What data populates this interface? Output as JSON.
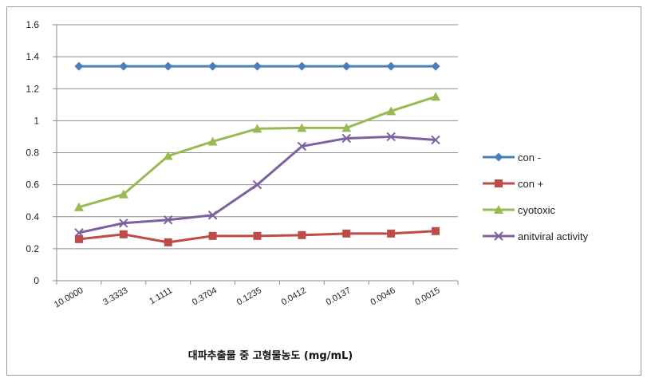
{
  "chart_data": {
    "type": "line",
    "title": "",
    "xlabel": "대파추출물 중 고형물농도 (mg/mL)",
    "ylabel": "",
    "ylim": [
      0,
      1.6
    ],
    "yticks": [
      "0",
      "0.2",
      "0.4",
      "0.6",
      "0.8",
      "1",
      "1.2",
      "1.4",
      "1.6"
    ],
    "categories": [
      "10.0000",
      "3.3333",
      "1.1111",
      "0.3704",
      "0.1235",
      "0.0412",
      "0.0137",
      "0.0046",
      "0.0015"
    ],
    "grid": "horizontal",
    "legend_position": "right",
    "series": [
      {
        "name": "con -",
        "color": "#4a7ebb",
        "marker": "diamond",
        "values": [
          1.34,
          1.34,
          1.34,
          1.34,
          1.34,
          1.34,
          1.34,
          1.34,
          1.34
        ]
      },
      {
        "name": "con +",
        "color": "#be4b48",
        "marker": "square",
        "values": [
          0.26,
          0.29,
          0.24,
          0.28,
          0.28,
          0.285,
          0.295,
          0.295,
          0.31
        ]
      },
      {
        "name": "cyotoxic",
        "color": "#98b954",
        "marker": "triangle",
        "values": [
          0.46,
          0.54,
          0.78,
          0.87,
          0.95,
          0.955,
          0.955,
          1.06,
          1.15
        ]
      },
      {
        "name": "anitviral activity",
        "color": "#7d60a0",
        "marker": "x",
        "values": [
          0.3,
          0.36,
          0.38,
          0.41,
          0.6,
          0.84,
          0.89,
          0.9,
          0.88
        ]
      }
    ]
  }
}
